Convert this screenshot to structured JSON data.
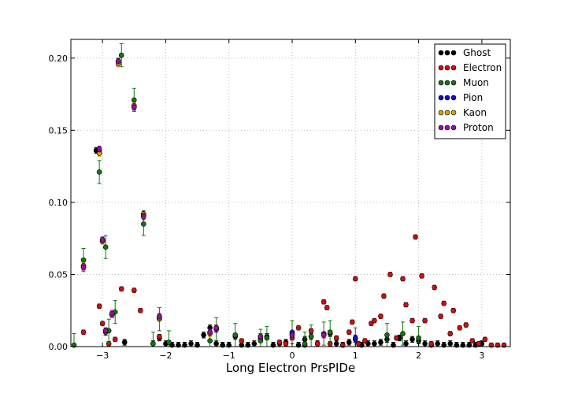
{
  "chart_data": {
    "type": "scatter",
    "title": "",
    "xlabel": "Long Electron PrsPIDe",
    "ylabel": "",
    "xlim": [
      -3.5,
      3.45
    ],
    "ylim": [
      0,
      0.213
    ],
    "xticks": [
      -3,
      -2,
      -1,
      0,
      1,
      2,
      3
    ],
    "xtick_labels": [
      "−3",
      "−2",
      "−1",
      "0",
      "1",
      "2",
      "3"
    ],
    "yticks": [
      0,
      0.05,
      0.1,
      0.15,
      0.2
    ],
    "ytick_labels": [
      "0.00",
      "0.05",
      "0.10",
      "0.15",
      "0.20"
    ],
    "grid": true,
    "legend_position": "top-right",
    "series": [
      {
        "name": "Ghost",
        "color": "#000000",
        "err": 0.002,
        "x": [
          -3.3,
          -3.1,
          -3.0,
          -2.95,
          -2.85,
          -2.75,
          -2.65,
          -2.5,
          -2.35,
          -2.2,
          -2.1,
          -2.0,
          -1.9,
          -1.8,
          -1.7,
          -1.6,
          -1.5,
          -1.4,
          -1.3,
          -1.2,
          -1.1,
          -1.0,
          -0.9,
          -0.8,
          -0.7,
          -0.6,
          -0.5,
          -0.4,
          -0.3,
          -0.2,
          -0.1,
          0.0,
          0.1,
          0.2,
          0.3,
          0.4,
          0.5,
          0.6,
          0.7,
          0.8,
          0.9,
          1.0,
          1.1,
          1.2,
          1.3,
          1.4,
          1.5,
          1.6,
          1.7,
          1.8,
          1.9,
          2.0,
          2.1,
          2.2,
          2.3,
          2.4,
          2.5,
          2.6,
          2.7,
          2.8,
          2.9,
          3.0
        ],
        "y": [
          0.055,
          0.136,
          0.074,
          0.01,
          0.022,
          0.197,
          0.003,
          0.166,
          0.092,
          0.002,
          0.006,
          0.002,
          0.001,
          0.001,
          0.001,
          0.002,
          0.001,
          0.008,
          0.013,
          0.002,
          0.001,
          0.001,
          0.007,
          0.001,
          0.001,
          0.002,
          0.006,
          0.007,
          0.001,
          0.002,
          0.003,
          0.008,
          0.001,
          0.005,
          0.007,
          0.002,
          0.008,
          0.009,
          0.002,
          0.001,
          0.003,
          0.005,
          0.001,
          0.002,
          0.002,
          0.003,
          0.005,
          0.001,
          0.006,
          0.002,
          0.005,
          0.004,
          0.002,
          0.001,
          0.002,
          0.001,
          0.002,
          0.001,
          0.001,
          0.001,
          0.001,
          0.002
        ]
      },
      {
        "name": "Electron",
        "color": "#cc1111",
        "err": 0.0015,
        "x": [
          -3.3,
          -3.05,
          -3.0,
          -2.9,
          -2.8,
          -2.7,
          -2.5,
          -2.4,
          -2.1,
          -0.8,
          -0.5,
          -0.2,
          -0.1,
          0.0,
          0.1,
          0.2,
          0.3,
          0.4,
          0.5,
          0.55,
          0.6,
          0.7,
          0.8,
          0.9,
          0.95,
          1.0,
          1.05,
          1.15,
          1.25,
          1.3,
          1.4,
          1.45,
          1.55,
          1.65,
          1.75,
          1.8,
          1.9,
          1.95,
          2.05,
          2.1,
          2.2,
          2.25,
          2.35,
          2.4,
          2.5,
          2.55,
          2.65,
          2.75,
          2.85,
          2.95,
          3.05,
          3.15,
          3.25,
          3.35
        ],
        "y": [
          0.01,
          0.028,
          0.016,
          0.002,
          0.005,
          0.04,
          0.039,
          0.025,
          0.007,
          0.004,
          0.005,
          0.003,
          0.002,
          0.006,
          0.013,
          0.001,
          0.011,
          0.002,
          0.031,
          0.027,
          0.002,
          0.006,
          0.001,
          0.01,
          0.017,
          0.047,
          0.002,
          0.004,
          0.016,
          0.018,
          0.021,
          0.035,
          0.05,
          0.006,
          0.047,
          0.029,
          0.018,
          0.076,
          0.049,
          0.018,
          0.002,
          0.041,
          0.021,
          0.03,
          0.009,
          0.025,
          0.013,
          0.015,
          0.004,
          0.002,
          0.005,
          0.001,
          0.001,
          0.001
        ]
      },
      {
        "name": "Muon",
        "color": "#117711",
        "err": 0.008,
        "x": [
          -3.45,
          -3.3,
          -3.05,
          -2.95,
          -2.9,
          -2.8,
          -2.7,
          -2.5,
          -2.35,
          -2.2,
          -2.1,
          -1.95,
          -1.3,
          -1.2,
          -0.9,
          -0.5,
          -0.4,
          0.0,
          0.2,
          0.3,
          0.5,
          0.6,
          1.0,
          1.5,
          1.75,
          2.0
        ],
        "y": [
          0.001,
          0.06,
          0.121,
          0.069,
          0.011,
          0.024,
          0.202,
          0.171,
          0.085,
          0.002,
          0.019,
          0.003,
          0.004,
          0.012,
          0.008,
          0.004,
          0.006,
          0.01,
          0.002,
          0.007,
          0.009,
          0.01,
          0.005,
          0.008,
          0.009,
          0.006
        ]
      },
      {
        "name": "Pion",
        "color": "#1111bb",
        "err": 0.002,
        "x": [
          -3.3,
          -3.05,
          -3.0,
          -2.95,
          -2.85,
          -2.75,
          -2.5,
          -2.35,
          -2.1,
          -1.3,
          -1.2,
          -0.5,
          0.0,
          0.5,
          1.0
        ],
        "y": [
          0.056,
          0.135,
          0.073,
          0.011,
          0.022,
          0.198,
          0.167,
          0.091,
          0.02,
          0.01,
          0.012,
          0.007,
          0.009,
          0.008,
          0.006
        ]
      },
      {
        "name": "Kaon",
        "color": "#ccaa00",
        "err": 0.002,
        "x": [
          -3.3,
          -3.05,
          -3.0,
          -2.95,
          -2.85,
          -2.75,
          -2.5,
          -2.35,
          -2.1,
          -1.3,
          -1.2
        ],
        "y": [
          0.056,
          0.134,
          0.073,
          0.011,
          0.022,
          0.196,
          0.167,
          0.091,
          0.02,
          0.009,
          0.013
        ]
      },
      {
        "name": "Proton",
        "color": "#991199",
        "err": 0.002,
        "x": [
          -3.3,
          -3.05,
          -3.0,
          -2.95,
          -2.85,
          -2.75,
          -2.5,
          -2.35,
          -2.1,
          -1.3,
          -1.2,
          -0.5,
          0.0,
          0.5
        ],
        "y": [
          0.055,
          0.137,
          0.074,
          0.011,
          0.023,
          0.198,
          0.166,
          0.09,
          0.021,
          0.01,
          0.013,
          0.007,
          0.008,
          0.008
        ]
      }
    ]
  }
}
